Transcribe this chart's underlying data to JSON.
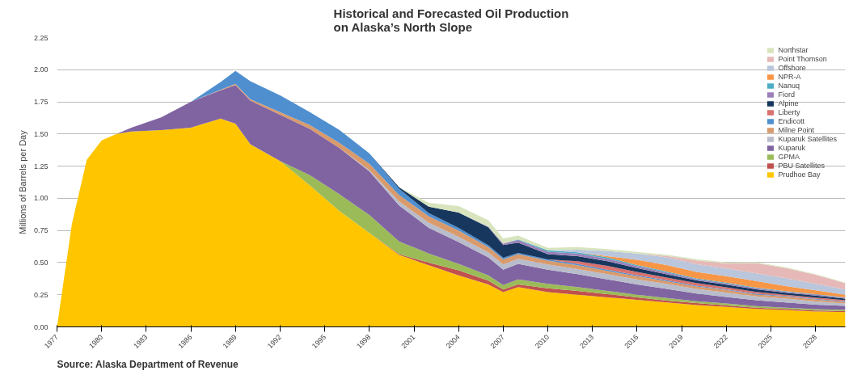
{
  "chart_data": {
    "type": "area",
    "stacked": true,
    "title": "Historical and Forecasted Oil Production\non Alaska’s North Slope",
    "ylabel": "Millions of Barrels per Day",
    "annotations": [
      "Source:  Alaska Department of Revenue"
    ],
    "x": [
      1977,
      1978,
      1979,
      1980,
      1981,
      1982,
      1984,
      1986,
      1988,
      1989,
      1990,
      1992,
      1994,
      1996,
      1998,
      2000,
      2002,
      2004,
      2006,
      2007,
      2008,
      2010,
      2012,
      2014,
      2016,
      2018,
      2020,
      2022,
      2024,
      2026,
      2028,
      2030
    ],
    "series": [
      {
        "name": "Prudhoe Bay",
        "color": "#ffc600",
        "values": [
          0,
          0.8,
          1.3,
          1.45,
          1.5,
          1.52,
          1.53,
          1.55,
          1.62,
          1.58,
          1.42,
          1.29,
          1.1,
          0.9,
          0.73,
          0.56,
          0.48,
          0.4,
          0.33,
          0.27,
          0.31,
          0.27,
          0.25,
          0.23,
          0.21,
          0.19,
          0.17,
          0.155,
          0.14,
          0.13,
          0.12,
          0.115
        ]
      },
      {
        "name": "PBU Satellites",
        "color": "#c0504d",
        "values": [
          null,
          null,
          null,
          null,
          null,
          null,
          null,
          null,
          null,
          null,
          null,
          null,
          null,
          null,
          0,
          0.005,
          0.02,
          0.04,
          0.03,
          0.02,
          0.02,
          0.03,
          0.03,
          0.025,
          0.02,
          0.015,
          0.015,
          0.012,
          0.01,
          0.01,
          0.008,
          0.008
        ]
      },
      {
        "name": "GPMA",
        "color": "#9bbb59",
        "values": [
          null,
          null,
          null,
          null,
          null,
          null,
          null,
          null,
          null,
          null,
          null,
          0,
          0.08,
          0.13,
          0.14,
          0.1,
          0.07,
          0.05,
          0.04,
          0.035,
          0.04,
          0.035,
          0.03,
          0.025,
          0.02,
          0.02,
          0.015,
          0.015,
          0.012,
          0.01,
          0.01,
          0.01
        ]
      },
      {
        "name": "Kuparuk",
        "color": "#8064a2",
        "values": [
          null,
          null,
          null,
          null,
          0,
          0.03,
          0.1,
          0.2,
          0.22,
          0.3,
          0.34,
          0.36,
          0.36,
          0.36,
          0.34,
          0.28,
          0.2,
          0.17,
          0.14,
          0.12,
          0.12,
          0.11,
          0.1,
          0.09,
          0.08,
          0.07,
          0.06,
          0.05,
          0.045,
          0.04,
          0.035,
          0.03
        ]
      },
      {
        "name": "Kuparuk Satellites",
        "color": "#b8bccb",
        "values": [
          null,
          null,
          null,
          null,
          null,
          null,
          null,
          null,
          null,
          null,
          null,
          null,
          null,
          0,
          0.01,
          0.03,
          0.04,
          0.04,
          0.04,
          0.04,
          0.04,
          0.04,
          0.04,
          0.04,
          0.04,
          0.04,
          0.035,
          0.035,
          0.03,
          0.03,
          0.025,
          0.02
        ]
      },
      {
        "name": "Milne Point",
        "color": "#d99a6c",
        "values": [
          null,
          null,
          null,
          null,
          null,
          null,
          null,
          0,
          0.005,
          0.01,
          0.01,
          0.02,
          0.03,
          0.04,
          0.05,
          0.05,
          0.05,
          0.05,
          0.04,
          0.04,
          0.035,
          0.03,
          0.03,
          0.025,
          0.025,
          0.02,
          0.02,
          0.02,
          0.015,
          0.015,
          0.015,
          0.01
        ]
      },
      {
        "name": "Endicott",
        "color": "#4f8fd0",
        "values": [
          null,
          null,
          null,
          null,
          null,
          null,
          null,
          0,
          0.06,
          0.1,
          0.14,
          0.13,
          0.1,
          0.1,
          0.08,
          0.05,
          0.025,
          0.02,
          0.015,
          0.012,
          0.01,
          0.01,
          0.01,
          0.01,
          0.008,
          0.008,
          0.006,
          0.006,
          0.005,
          0.005,
          0.005,
          0.005
        ]
      },
      {
        "name": "Liberty",
        "color": "#d9716e",
        "values": [
          null,
          null,
          null,
          null,
          null,
          null,
          null,
          null,
          null,
          null,
          null,
          null,
          null,
          null,
          null,
          null,
          null,
          null,
          null,
          null,
          null,
          0,
          0.02,
          0.03,
          0.025,
          0.02,
          0.02,
          0.015,
          0.015,
          0.01,
          0.01,
          0.01
        ]
      },
      {
        "name": "Alpine",
        "color": "#17375e",
        "values": [
          null,
          null,
          null,
          null,
          null,
          null,
          null,
          null,
          null,
          null,
          null,
          null,
          null,
          null,
          0,
          0.01,
          0.05,
          0.12,
          0.14,
          0.1,
          0.08,
          0.04,
          0.04,
          0.035,
          0.03,
          0.025,
          0.02,
          0.02,
          0.02,
          0.015,
          0.015,
          0.012
        ]
      },
      {
        "name": "Fiord",
        "color": "#9b80b8",
        "values": [
          null,
          null,
          null,
          null,
          null,
          null,
          null,
          null,
          null,
          null,
          null,
          null,
          null,
          null,
          null,
          null,
          null,
          0,
          0.005,
          0.01,
          0.02,
          0.02,
          0.02,
          0.02,
          0.015,
          0.015,
          0.01,
          0.01,
          0.01,
          0.008,
          0.008,
          0.006
        ]
      },
      {
        "name": "Nanuq",
        "color": "#4bacc6",
        "values": [
          null,
          null,
          null,
          null,
          null,
          null,
          null,
          null,
          null,
          null,
          null,
          null,
          null,
          null,
          null,
          null,
          null,
          null,
          null,
          0,
          0.005,
          0.01,
          0.01,
          0.01,
          0.008,
          0.008,
          0.006,
          0.006,
          0.005,
          0.005,
          0.004,
          0.004
        ]
      },
      {
        "name": "NPR-A",
        "color": "#f79646",
        "values": [
          null,
          null,
          null,
          null,
          null,
          null,
          null,
          null,
          null,
          null,
          null,
          null,
          null,
          null,
          null,
          null,
          null,
          null,
          null,
          null,
          null,
          null,
          0,
          0.01,
          0.04,
          0.05,
          0.05,
          0.05,
          0.05,
          0.04,
          0.03,
          0.02
        ]
      },
      {
        "name": "Offshore",
        "color": "#b9c6dc",
        "values": [
          null,
          null,
          null,
          null,
          null,
          null,
          null,
          null,
          null,
          null,
          null,
          null,
          null,
          null,
          null,
          null,
          null,
          null,
          null,
          null,
          null,
          0,
          0.02,
          0.04,
          0.05,
          0.06,
          0.06,
          0.06,
          0.06,
          0.06,
          0.05,
          0.04
        ]
      },
      {
        "name": "Point Thomson",
        "color": "#e6b9b8",
        "values": [
          null,
          null,
          null,
          null,
          null,
          null,
          null,
          null,
          null,
          null,
          null,
          null,
          null,
          null,
          null,
          null,
          null,
          null,
          null,
          null,
          null,
          null,
          null,
          null,
          0,
          0.01,
          0.03,
          0.04,
          0.08,
          0.08,
          0.07,
          0.05
        ]
      },
      {
        "name": "Northstar",
        "color": "#d7e4bd",
        "values": [
          null,
          null,
          null,
          null,
          null,
          null,
          null,
          null,
          null,
          null,
          null,
          null,
          null,
          null,
          null,
          0,
          0.03,
          0.05,
          0.05,
          0.04,
          0.03,
          0.02,
          0.02,
          0.015,
          0.012,
          0.01,
          0.01,
          0.008,
          0.006,
          0.005,
          0.005,
          0.004
        ]
      }
    ],
    "xlim": [
      1977,
      2030
    ],
    "xticks": [
      1977,
      1980,
      1983,
      1986,
      1989,
      1992,
      1995,
      1998,
      2001,
      2004,
      2007,
      2010,
      2013,
      2016,
      2019,
      2022,
      2025,
      2028
    ],
    "ylim": [
      0,
      2.25
    ],
    "yticks": [
      {
        "value": 0,
        "label": "0.00"
      },
      {
        "value": 0.25,
        "label": "0.25"
      },
      {
        "value": 0.5,
        "label": "0.50"
      },
      {
        "value": 0.75,
        "label": "0.75"
      },
      {
        "value": 1,
        "label": "1.00"
      },
      {
        "value": 1.25,
        "label": "1.25"
      },
      {
        "value": 1.5,
        "label": "1.50"
      },
      {
        "value": 1.75,
        "label": "1.75"
      },
      {
        "value": 2,
        "label": "2.00"
      },
      {
        "value": 2.25,
        "label": "2.25"
      }
    ],
    "grid": "y",
    "legend": "top right"
  }
}
